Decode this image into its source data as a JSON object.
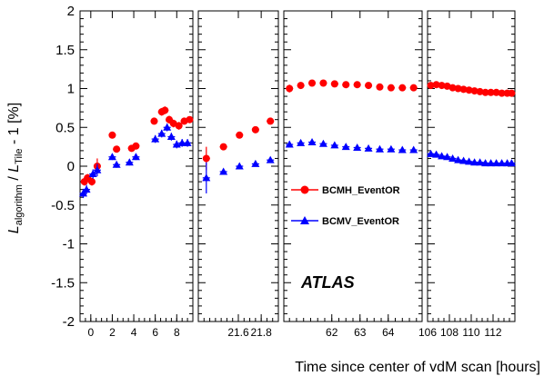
{
  "chart_data": {
    "type": "scatter",
    "xlabel": "Time since center of vdM scan [hours]",
    "ylabel": {
      "base": "L",
      "sub1": "algorithm",
      "mid": " / ",
      "sub2": "Tile",
      "tail": " - 1 [%]"
    },
    "ylim": [
      -2,
      2
    ],
    "yticks": [
      2,
      1.5,
      1,
      0.5,
      0,
      -0.5,
      -1,
      -1.5,
      -2
    ],
    "ytick_labels": [
      "2",
      "1.5",
      "1",
      "0.5",
      "0",
      "-0.5",
      "-1",
      "-1.5",
      "-2"
    ],
    "annotation": "ATLAS",
    "legend": [
      {
        "name": "BCMH_EventOR",
        "color": "#ff0000",
        "marker": "circle"
      },
      {
        "name": "BCMV_EventOR",
        "color": "#0000ff",
        "marker": "triangle"
      }
    ],
    "panels": [
      {
        "xlim": [
          -1,
          9.5
        ],
        "xticks": [
          0,
          2,
          4,
          6,
          8
        ],
        "xtick_labels": [
          "0",
          "2",
          "4",
          "6",
          "8"
        ],
        "series": [
          {
            "x": [
              -0.6,
              -0.3,
              0.1,
              0.6,
              2.0,
              2.4,
              3.8,
              4.2,
              5.9,
              6.6,
              6.9,
              7.3,
              7.7,
              8.2,
              8.7,
              9.2
            ],
            "y": [
              -0.2,
              -0.15,
              -0.2,
              0.0,
              0.4,
              0.22,
              0.23,
              0.26,
              0.58,
              0.7,
              0.72,
              0.6,
              0.55,
              0.52,
              0.58,
              0.6
            ],
            "yerr": [
              0.05,
              0.05,
              0.05,
              0.1,
              0.03,
              0.03,
              0.03,
              0.03,
              0.04,
              0.05,
              0.05,
              0.05,
              0.05,
              0.05,
              0.04,
              0.04
            ]
          },
          {
            "x": [
              -0.7,
              -0.4,
              0.2,
              0.6,
              2.0,
              2.4,
              3.6,
              4.2,
              6.0,
              6.6,
              7.1,
              7.5,
              8.0,
              8.5,
              9.0
            ],
            "y": [
              -0.35,
              -0.3,
              -0.1,
              -0.05,
              0.12,
              0.02,
              0.05,
              0.12,
              0.35,
              0.42,
              0.5,
              0.38,
              0.28,
              0.3,
              0.3
            ],
            "yerr": [
              0.06,
              0.06,
              0.06,
              0.08,
              0.04,
              0.04,
              0.04,
              0.04,
              0.05,
              0.05,
              0.05,
              0.05,
              0.05,
              0.05,
              0.05
            ]
          }
        ]
      },
      {
        "xlim": [
          21.25,
          21.95
        ],
        "xticks": [
          21.6,
          21.8
        ],
        "xtick_labels": [
          "21.6",
          "21.8"
        ],
        "series": [
          {
            "x": [
              21.32,
              21.47,
              21.61,
              21.75,
              21.88
            ],
            "y": [
              0.1,
              0.25,
              0.4,
              0.47,
              0.58
            ],
            "yerr": [
              0.15,
              0.03,
              0.03,
              0.03,
              0.03
            ]
          },
          {
            "x": [
              21.32,
              21.47,
              21.61,
              21.75,
              21.88
            ],
            "y": [
              -0.15,
              -0.07,
              0.0,
              0.03,
              0.08
            ],
            "yerr": [
              0.2,
              0.03,
              0.03,
              0.03,
              0.03
            ]
          }
        ]
      },
      {
        "xlim": [
          60.3,
          65.2
        ],
        "xticks": [
          62,
          63,
          64
        ],
        "xtick_labels": [
          "62",
          "63",
          "64"
        ],
        "series": [
          {
            "x": [
              60.5,
              60.9,
              61.3,
              61.7,
              62.1,
              62.5,
              62.9,
              63.3,
              63.7,
              64.1,
              64.5,
              64.9
            ],
            "y": [
              1.0,
              1.04,
              1.07,
              1.07,
              1.06,
              1.05,
              1.05,
              1.04,
              1.02,
              1.01,
              1.01,
              1.01
            ],
            "yerr": [
              0.05,
              0.03,
              0.03,
              0.03,
              0.03,
              0.03,
              0.03,
              0.03,
              0.03,
              0.03,
              0.03,
              0.03
            ]
          },
          {
            "x": [
              60.5,
              60.9,
              61.3,
              61.7,
              62.1,
              62.5,
              62.9,
              63.3,
              63.7,
              64.1,
              64.5,
              64.9
            ],
            "y": [
              0.28,
              0.3,
              0.31,
              0.29,
              0.27,
              0.25,
              0.24,
              0.23,
              0.22,
              0.22,
              0.21,
              0.21
            ],
            "yerr": [
              0.04,
              0.03,
              0.03,
              0.03,
              0.03,
              0.03,
              0.03,
              0.03,
              0.03,
              0.03,
              0.03,
              0.03
            ]
          }
        ]
      },
      {
        "xlim": [
          106,
          114
        ],
        "xticks": [
          106,
          108,
          110,
          112
        ],
        "xtick_labels": [
          "106",
          "108",
          "110",
          "112"
        ],
        "series": [
          {
            "x": [
              106.3,
              106.8,
              107.3,
              107.8,
              108.3,
              108.8,
              109.3,
              109.8,
              110.3,
              110.8,
              111.3,
              111.8,
              112.3,
              112.8,
              113.3,
              113.7
            ],
            "y": [
              1.04,
              1.05,
              1.04,
              1.03,
              1.01,
              1.0,
              0.99,
              0.98,
              0.97,
              0.96,
              0.95,
              0.95,
              0.95,
              0.94,
              0.94,
              0.94
            ],
            "yerr": [
              0.03,
              0.03,
              0.03,
              0.03,
              0.03,
              0.03,
              0.03,
              0.03,
              0.03,
              0.03,
              0.03,
              0.03,
              0.03,
              0.03,
              0.03,
              0.03
            ]
          },
          {
            "x": [
              106.3,
              106.8,
              107.3,
              107.8,
              108.3,
              108.8,
              109.3,
              109.8,
              110.3,
              110.8,
              111.3,
              111.8,
              112.3,
              112.8,
              113.3,
              113.7
            ],
            "y": [
              0.16,
              0.15,
              0.13,
              0.12,
              0.1,
              0.08,
              0.07,
              0.06,
              0.05,
              0.05,
              0.04,
              0.04,
              0.04,
              0.04,
              0.04,
              0.04
            ],
            "yerr": [
              0.03,
              0.03,
              0.03,
              0.03,
              0.03,
              0.03,
              0.03,
              0.03,
              0.03,
              0.03,
              0.03,
              0.03,
              0.03,
              0.03,
              0.03,
              0.03
            ]
          }
        ]
      }
    ]
  }
}
